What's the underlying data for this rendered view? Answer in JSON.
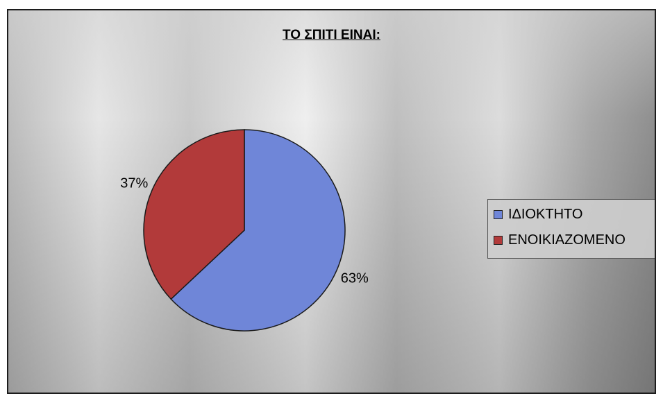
{
  "chart_data": {
    "type": "pie",
    "title": "ΤΟ ΣΠΙΤΙ ΕΙΝΑΙ:",
    "categories": [
      "ΙΔΙΟΚΤΗΤΟ",
      "ΕΝΟΙΚΙΑΖΟΜΕΝΟ"
    ],
    "values": [
      63,
      37
    ],
    "data_labels": [
      "63%",
      "37%"
    ],
    "colors": [
      "#6f86d8",
      "#b23a3a"
    ],
    "legend": {
      "position": "right",
      "entries": [
        "ΙΔΙΟΚΤΗΤΟ",
        "ΕΝΟΙΚΙΑΖΟΜΕΝΟ"
      ]
    }
  }
}
